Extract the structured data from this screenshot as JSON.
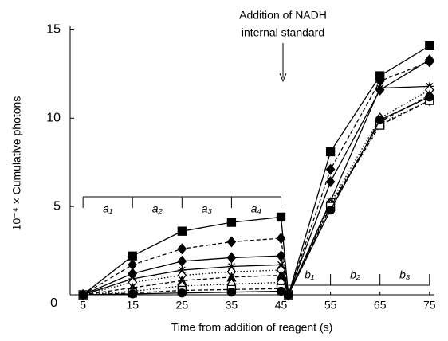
{
  "chart_data": {
    "type": "line",
    "ylabel": "10⁻⁴ × Cumulative photons",
    "xlabel": "Time from addition of reagent (s)",
    "annotation": [
      "Addition of NADH",
      "internal standard"
    ],
    "brackets_a": [
      "a₁",
      "a₂",
      "a₃",
      "a₄"
    ],
    "brackets_b": [
      "b₁",
      "b₂",
      "b₃"
    ],
    "x": [
      5,
      15,
      25,
      35,
      45,
      46.5,
      55,
      65,
      75
    ],
    "xlim": [
      2.4,
      76
    ],
    "ylim": [
      0,
      15.2
    ],
    "xticks": [
      5,
      15,
      25,
      35,
      45,
      55,
      65,
      75
    ],
    "yticks": [
      0,
      5,
      10,
      15
    ],
    "series": [
      {
        "color": "#000000",
        "marker": "square",
        "dash": "solid",
        "values": [
          0,
          2.2,
          3.6,
          4.1,
          4.4,
          0,
          8.1,
          12.4,
          14.1
        ]
      },
      {
        "color": "#000000",
        "marker": "diamond",
        "dash": "dashed",
        "values": [
          0,
          1.7,
          2.6,
          3.0,
          3.2,
          0,
          7.1,
          12.1,
          13.2
        ]
      },
      {
        "color": "#000000",
        "marker": "diamond",
        "dash": "solid",
        "values": [
          0,
          1.2,
          1.9,
          2.1,
          2.2,
          0,
          6.4,
          11.6,
          13.3
        ]
      },
      {
        "color": "#000000",
        "marker": "asterisk",
        "dash": "solid",
        "values": [
          0,
          0.9,
          1.4,
          1.6,
          1.7,
          0,
          5.3,
          11.7,
          11.8
        ]
      },
      {
        "color": "#000000",
        "marker": "open-diamond",
        "dash": "dotted",
        "values": [
          0,
          0.7,
          1.1,
          1.3,
          1.4,
          0,
          5.2,
          10.0,
          11.6
        ]
      },
      {
        "color": "#000000",
        "marker": "triangle",
        "dash": "dashed",
        "values": [
          0,
          0.4,
          0.8,
          1.0,
          1.1,
          0,
          5.0,
          9.8,
          11.3
        ]
      },
      {
        "color": "#000000",
        "marker": "open-diamond",
        "dash": "dotted",
        "values": [
          0,
          0.2,
          0.5,
          0.6,
          0.7,
          0,
          5.1,
          9.7,
          11.0
        ]
      },
      {
        "color": "#000000",
        "marker": "open-square",
        "dash": "dashed",
        "values": [
          0,
          0.1,
          0.25,
          0.3,
          0.35,
          0,
          5.0,
          9.6,
          11.0
        ]
      },
      {
        "color": "#000000",
        "marker": "circle",
        "dash": "solid",
        "values": [
          0,
          0.05,
          0.1,
          0.15,
          0.2,
          0,
          4.8,
          9.9,
          11.2
        ]
      }
    ]
  }
}
